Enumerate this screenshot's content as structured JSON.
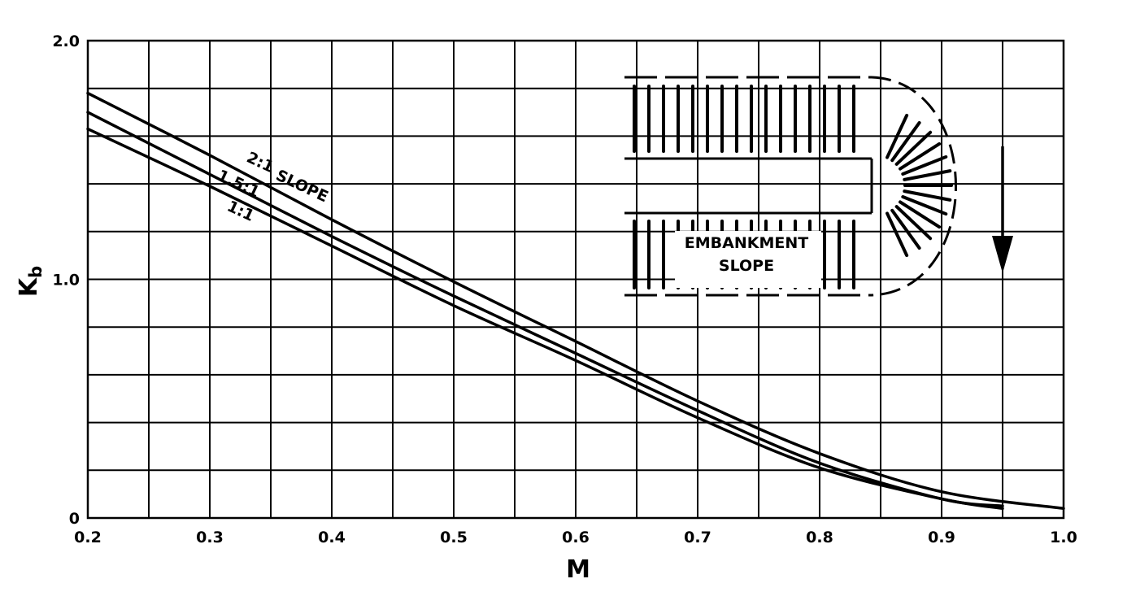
{
  "chart_data": {
    "type": "line",
    "xlabel": "M",
    "ylabel_main": "K",
    "ylabel_sub": "b",
    "xlim": [
      0.2,
      1.0
    ],
    "ylim": [
      0,
      2.0
    ],
    "grid": true,
    "x_ticks": [
      "0.2",
      "0.3",
      "0.4",
      "0.5",
      "0.6",
      "0.7",
      "0.8",
      "0.9",
      "1.0"
    ],
    "y_ticks": [
      "0",
      "1.0",
      "2.0"
    ],
    "series": [
      {
        "name": "2:1 SLOPE",
        "x": [
          0.2,
          0.3,
          0.4,
          0.5,
          0.6,
          0.7,
          0.8,
          0.9,
          1.0
        ],
        "y": [
          1.78,
          1.52,
          1.25,
          0.99,
          0.74,
          0.49,
          0.27,
          0.11,
          0.04
        ]
      },
      {
        "name": "1.5:1",
        "x": [
          0.2,
          0.3,
          0.4,
          0.5,
          0.6,
          0.7,
          0.8,
          0.9,
          0.95
        ],
        "y": [
          1.7,
          1.44,
          1.18,
          0.93,
          0.69,
          0.45,
          0.23,
          0.08,
          0.05
        ]
      },
      {
        "name": "1:1",
        "x": [
          0.2,
          0.3,
          0.4,
          0.5,
          0.6,
          0.7,
          0.8,
          0.9,
          0.95
        ],
        "y": [
          1.63,
          1.39,
          1.14,
          0.89,
          0.66,
          0.42,
          0.21,
          0.08,
          0.04
        ]
      }
    ],
    "annotations": {
      "label_2to1": "2:1",
      "label_slope": "SLOPE",
      "label_15to1": "1.5:1",
      "label_1to1": "1:1",
      "inset_line1": "EMBANKMENT",
      "inset_line2": "SLOPE"
    }
  }
}
